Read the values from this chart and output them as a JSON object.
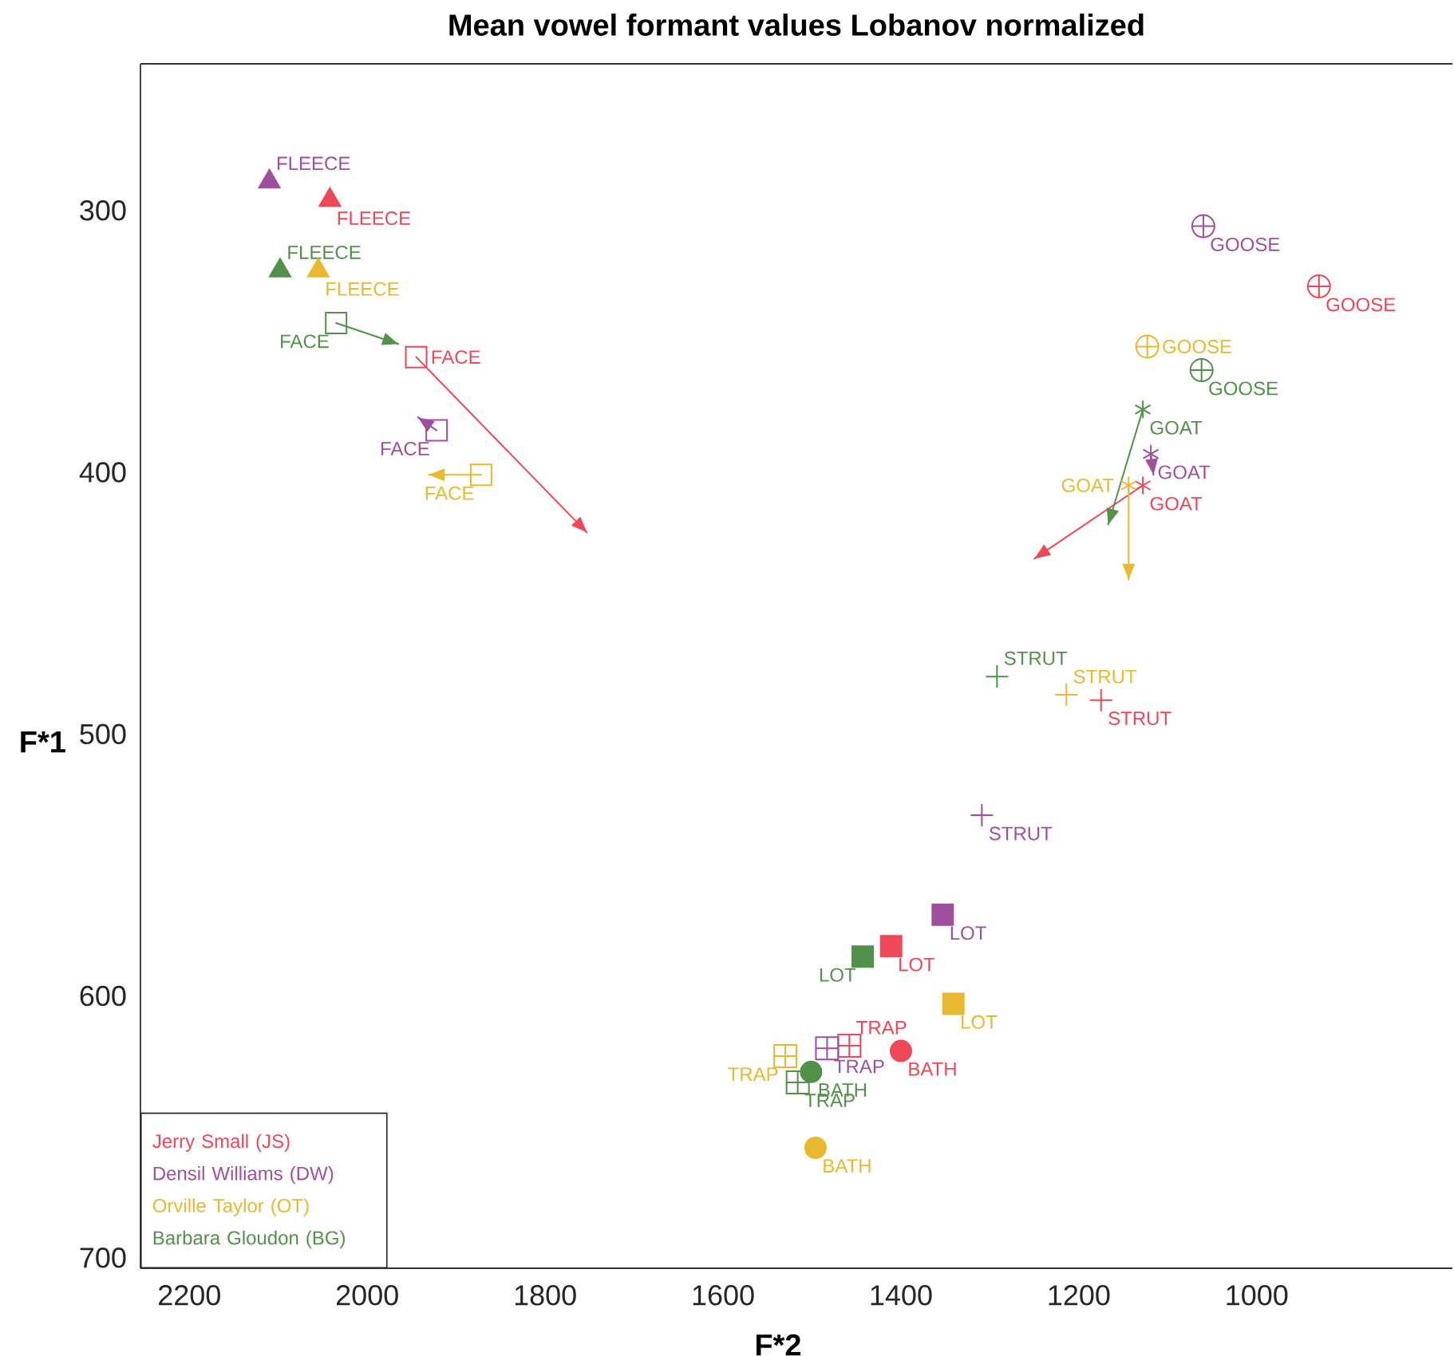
{
  "chart_data": {
    "type": "scatter",
    "title": "Mean vowel formant values Lobanov normalized",
    "xlabel": "F*2",
    "ylabel": "F*1",
    "xlim": [
      2255,
      780
    ],
    "ylim": [
      704,
      244
    ],
    "xticks": [
      2200,
      2000,
      1800,
      1600,
      1400,
      1200,
      1000
    ],
    "yticks": [
      300,
      400,
      500,
      600,
      700
    ],
    "legend": "bottom left",
    "series": [
      {
        "name": "Jerry Small (JS)",
        "color": "#ef4756",
        "x": [
          2042,
          1945,
          930,
          1128,
          1175,
          1411,
          1458,
          1400
        ],
        "values": [
          296,
          356,
          329,
          405,
          487,
          581,
          619,
          621
        ],
        "value_labels": [
          "FLEECE",
          "FACE",
          "GOOSE",
          "GOAT",
          "STRUT",
          "LOT",
          "TRAP",
          "BATH"
        ],
        "marker": [
          "triangle",
          "square-open",
          "circle-cross",
          "star",
          "cross",
          "square",
          "square-cross",
          "circle"
        ]
      },
      {
        "name": "Densil Williams (DW)",
        "color": "#a04f9e",
        "x": [
          2110,
          1922,
          1060,
          1119,
          1309,
          1353,
          1483
        ],
        "values": [
          289,
          384,
          306,
          393,
          531,
          569,
          620
        ],
        "value_labels": [
          "FLEECE",
          "FACE",
          "GOOSE",
          "GOAT",
          "STRUT",
          "LOT",
          "TRAP"
        ],
        "marker": [
          "triangle",
          "square-open",
          "circle-cross",
          "star",
          "cross",
          "square",
          "square-cross"
        ]
      },
      {
        "name": "Orville Taylor (OT)",
        "color": "#e8b92f",
        "x": [
          2055,
          1872,
          1123,
          1144,
          1214,
          1341,
          1530,
          1496
        ],
        "values": [
          323,
          401,
          352,
          405,
          485,
          603,
          623,
          658
        ],
        "value_labels": [
          "FLEECE",
          "FACE",
          "GOOSE",
          "GOAT",
          "STRUT",
          "LOT",
          "TRAP",
          "BATH"
        ],
        "marker": [
          "triangle",
          "square-open",
          "circle-cross",
          "star",
          "cross",
          "square",
          "square-cross",
          "circle"
        ]
      },
      {
        "name": "Barbara Gloudon (BG)",
        "color": "#529149",
        "x": [
          2098,
          2035,
          1062,
          1128,
          1292,
          1443,
          1516,
          1501
        ],
        "values": [
          323,
          343,
          361,
          376,
          478,
          585,
          633,
          629
        ],
        "value_labels": [
          "FLEECE",
          "FACE",
          "GOOSE",
          "GOAT",
          "STRUT",
          "LOT",
          "TRAP",
          "BATH"
        ],
        "marker": [
          "triangle",
          "square-open",
          "circle-cross",
          "star",
          "cross",
          "square",
          "square-cross",
          "circle"
        ]
      },
      {
        "type": "line",
        "color": "#ef4756",
        "x": [
          1945,
          1753
        ],
        "values": [
          356,
          423
        ]
      },
      {
        "type": "line",
        "color": "#a04f9e",
        "x": [
          1922,
          1943
        ],
        "values": [
          384,
          379
        ]
      },
      {
        "type": "line",
        "color": "#e8b92f",
        "x": [
          1872,
          1931
        ],
        "values": [
          401,
          401
        ]
      },
      {
        "type": "line",
        "color": "#529149",
        "x": [
          2035,
          1965
        ],
        "values": [
          343,
          351
        ]
      },
      {
        "type": "line",
        "color": "#ef4756",
        "x": [
          1128,
          1250
        ],
        "values": [
          405,
          433
        ]
      },
      {
        "type": "line",
        "color": "#a04f9e",
        "x": [
          1119,
          1116
        ],
        "values": [
          393,
          401
        ]
      },
      {
        "type": "line",
        "color": "#e8b92f",
        "x": [
          1144,
          1144
        ],
        "values": [
          405,
          441
        ]
      },
      {
        "type": "line",
        "color": "#529149",
        "x": [
          1128,
          1167
        ],
        "values": [
          376,
          420
        ]
      }
    ]
  }
}
